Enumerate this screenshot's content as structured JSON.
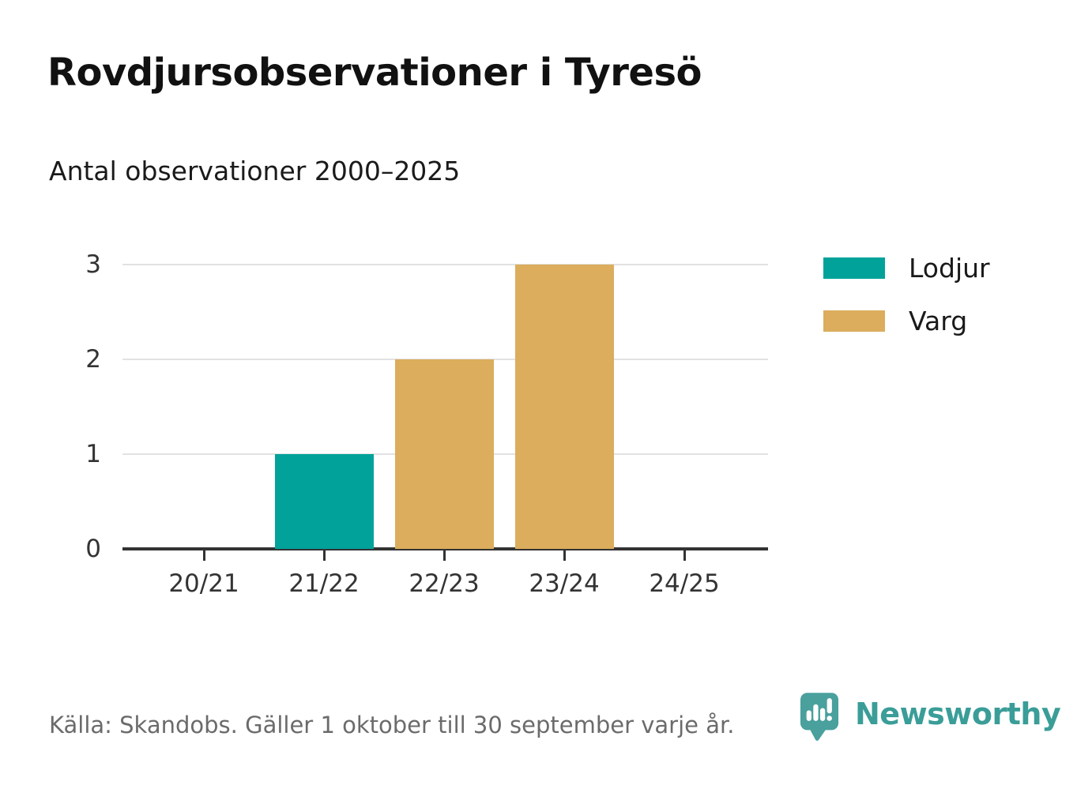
{
  "header": {
    "title": "Rovdjursobservationer i Tyresö",
    "subtitle": "Antal observationer 2000–2025"
  },
  "chart_data": {
    "type": "bar",
    "title": "Rovdjursobservationer i Tyresö",
    "subtitle": "Antal observationer 2000–2025",
    "categories": [
      "20/21",
      "21/22",
      "22/23",
      "23/24",
      "24/25"
    ],
    "series": [
      {
        "name": "Lodjur",
        "color": "#00a29a",
        "values": [
          0,
          1,
          0,
          0,
          0
        ]
      },
      {
        "name": "Varg",
        "color": "#dbad5c",
        "values": [
          0,
          0,
          2,
          3,
          0
        ]
      }
    ],
    "ylim": [
      0,
      3
    ],
    "yticks": [
      0,
      1,
      2,
      3
    ],
    "grid": "horizontal",
    "legend_position": "right"
  },
  "footer": {
    "source": "Källa: Skandobs. Gäller 1 oktober till 30 september varje år.",
    "brand": "Newsworthy",
    "brand_color": "#3a9d98",
    "logo_icon": "newsworthy-speech-bubble-chart-icon"
  },
  "colors": {
    "lodjur": "#00a29a",
    "varg": "#dbad5c",
    "axis": "#333333",
    "grid": "#e2e2e2",
    "title_text": "#111111",
    "muted_text": "#6b6b6b"
  }
}
